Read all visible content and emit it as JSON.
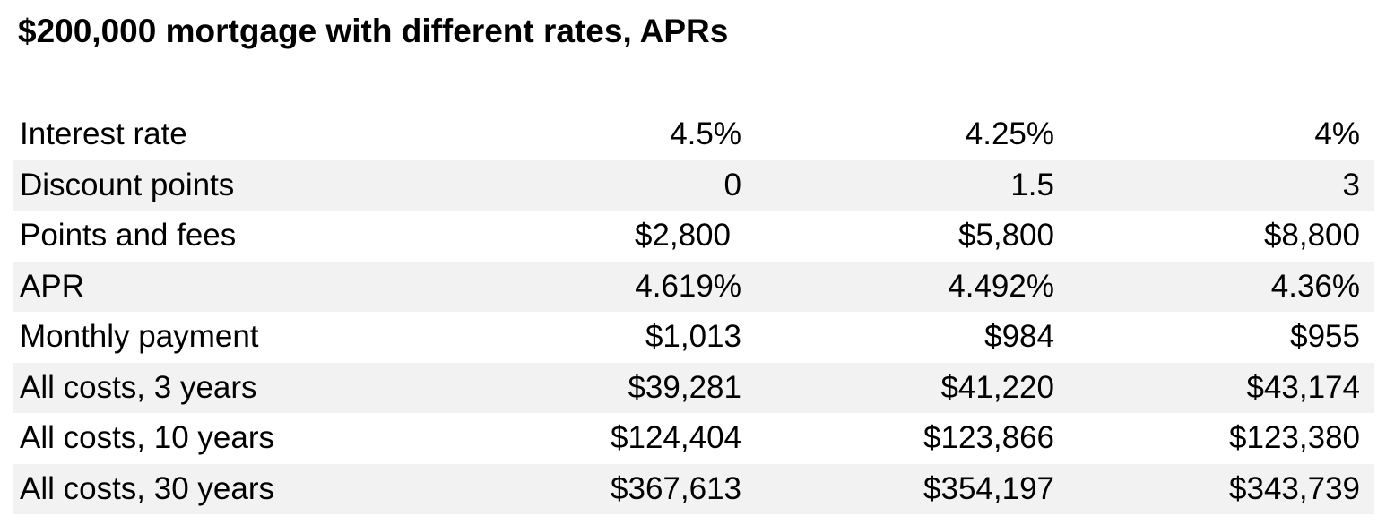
{
  "title": "$200,000 mortgage with different rates, APRs",
  "rows": [
    {
      "label": "Interest rate",
      "values": [
        "4.5%",
        "4.25%",
        "4%"
      ]
    },
    {
      "label": "Discount points",
      "values": [
        "0",
        "1.5",
        "3"
      ]
    },
    {
      "label": "Points and fees",
      "values": [
        "$2,800",
        "$5,800",
        "$8,800"
      ]
    },
    {
      "label": "APR",
      "values": [
        "4.619%",
        "4.492%",
        "4.36%"
      ]
    },
    {
      "label": "Monthly payment",
      "values": [
        "$1,013",
        "$984",
        "$955"
      ]
    },
    {
      "label": "All costs, 3 years",
      "values": [
        "$39,281",
        "$41,220",
        "$43,174"
      ]
    },
    {
      "label": "All costs, 10 years",
      "values": [
        "$124,404",
        "$123,866",
        "$123,380"
      ]
    },
    {
      "label": "All costs, 30 years",
      "values": [
        "$367,613",
        "$354,197",
        "$343,739"
      ]
    }
  ],
  "colors": {
    "shaded_row": "#f2f2f2",
    "text": "#000000"
  }
}
